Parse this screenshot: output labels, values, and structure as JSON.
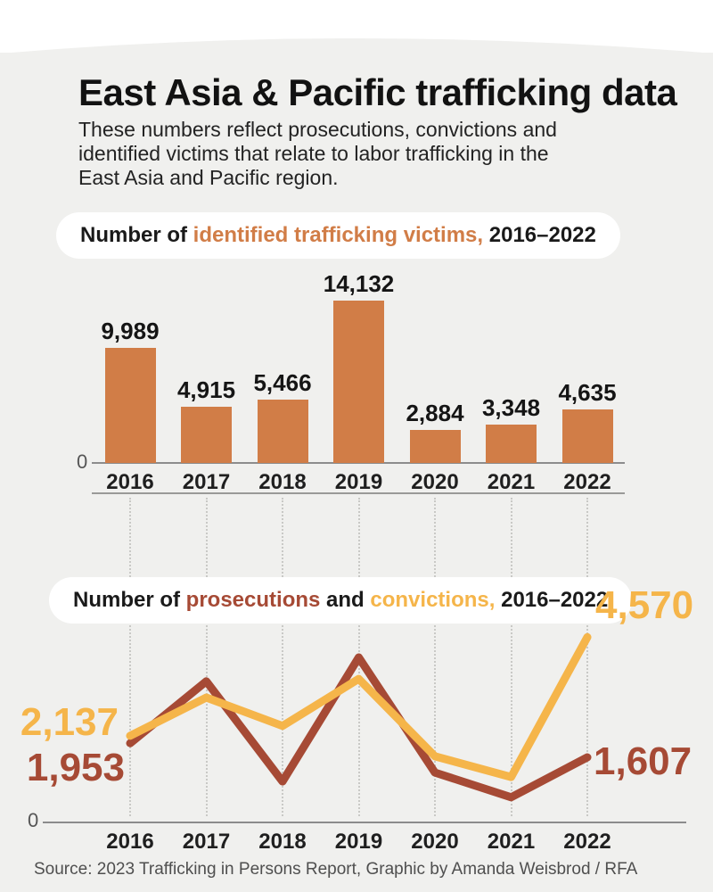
{
  "page": {
    "title": "East Asia & Pacific trafficking data",
    "subtitle": "These numbers reflect prosecutions, convictions and\nidentified victims that relate to labor trafficking in the\nEast Asia and Pacific region.",
    "source": "Source: 2023 Trafficking in Persons Report, Graphic by Amanda Weisbrod / RFA"
  },
  "colors": {
    "card_background": "#f0f0ee",
    "bar_orange": "#d17d47",
    "prosecutions_red": "#a64a35",
    "convictions_yellow": "#f5b54a",
    "pill_background": "#ffffff",
    "text_dark": "#1a1a1a",
    "axis_gray": "#8c8c8c"
  },
  "chart_data": [
    {
      "type": "bar",
      "title": "Number of identified trafficking victims, 2016–2022",
      "title_parts": {
        "prefix": "Number of ",
        "highlight": "identified trafficking victims,",
        "suffix": " 2016–2022"
      },
      "categories": [
        "2016",
        "2017",
        "2018",
        "2019",
        "2020",
        "2021",
        "2022"
      ],
      "values": [
        9989,
        4915,
        5466,
        14132,
        2884,
        3348,
        4635
      ],
      "value_labels": [
        "9,989",
        "4,915",
        "5,466",
        "14,132",
        "2,884",
        "3,348",
        "4,635"
      ],
      "bar_color": "#d17d47",
      "zero_label": "0",
      "xlabel": "",
      "ylabel": "",
      "ylim": [
        0,
        14500
      ],
      "grid": "off"
    },
    {
      "type": "line",
      "title": "Number of prosecutions and convictions, 2016–2022",
      "title_parts": {
        "prefix": "Number of ",
        "series1": "prosecutions",
        "mid": " and ",
        "series2": "convictions,",
        "suffix": " 2016–2022"
      },
      "categories": [
        "2016",
        "2017",
        "2018",
        "2019",
        "2020",
        "2021",
        "2022"
      ],
      "series": [
        {
          "name": "prosecutions",
          "color": "#a64a35",
          "values": [
            1953,
            3480,
            1010,
            4070,
            1230,
            620,
            1607
          ],
          "first_label": "1,953",
          "last_label": "1,607"
        },
        {
          "name": "convictions",
          "color": "#f5b54a",
          "values": [
            2137,
            3080,
            2380,
            3540,
            1630,
            1120,
            4570
          ],
          "first_label": "2,137",
          "last_label": "4,570"
        }
      ],
      "zero_label": "0",
      "ylim": [
        0,
        4800
      ],
      "grid": "dotted-vertical",
      "legend_position": "inline-title"
    }
  ]
}
